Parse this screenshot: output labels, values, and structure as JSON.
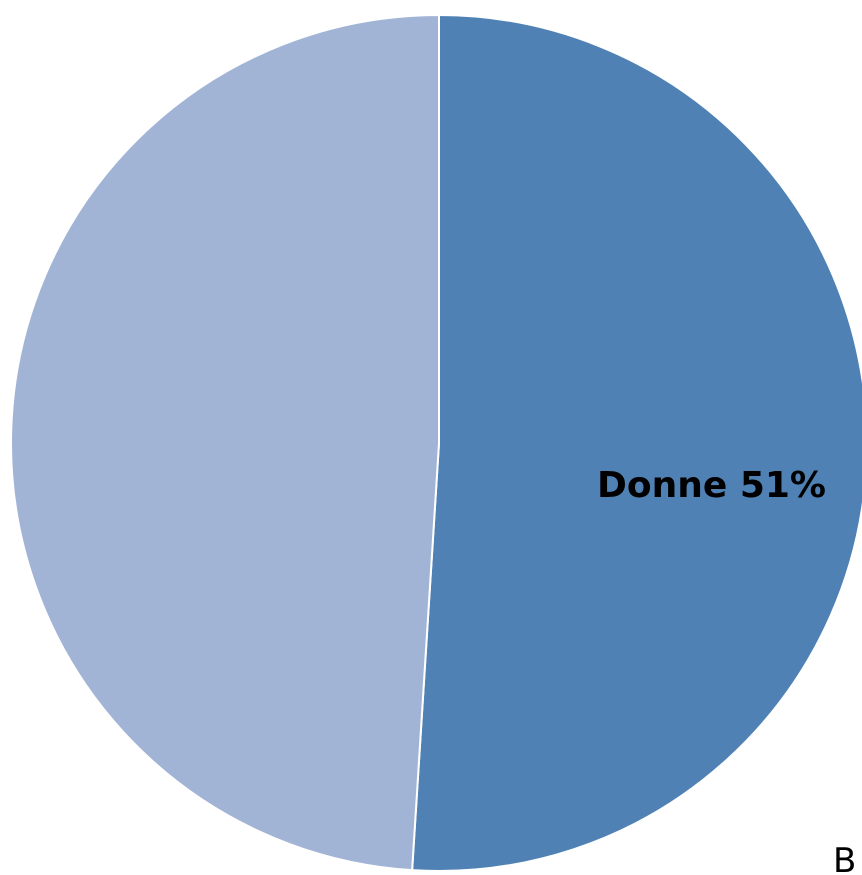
{
  "chart_data": {
    "type": "pie",
    "slices": [
      {
        "label": "Donne",
        "value": 51,
        "color": "#4f81b4"
      },
      {
        "label": "",
        "value": 49,
        "color": "#a2b4d6"
      }
    ],
    "data_labels": [
      "Donne 51%"
    ],
    "partial_text": "B",
    "start_angle_deg": 90,
    "direction": "clockwise"
  }
}
